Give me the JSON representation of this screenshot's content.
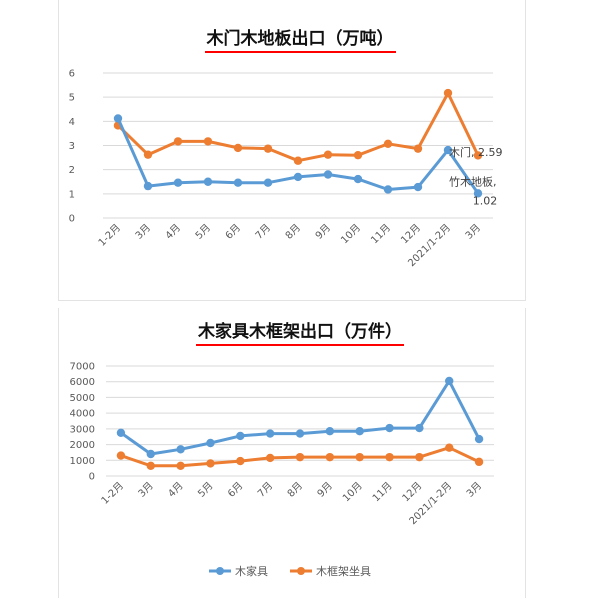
{
  "chart_data": [
    {
      "type": "line",
      "title": "木门木地板出口（万吨）",
      "categories": [
        "1-2月",
        "3月",
        "4月",
        "5月",
        "6月",
        "7月",
        "8月",
        "9月",
        "10月",
        "11月",
        "12月",
        "2021/1-2月",
        "3月"
      ],
      "ylim": [
        0,
        6
      ],
      "yticks": [
        0,
        1,
        2,
        3,
        4,
        5,
        6
      ],
      "grid": true,
      "series": [
        {
          "name": "木门",
          "color": "#ED7D31",
          "values": [
            3.83,
            2.62,
            3.17,
            3.17,
            2.9,
            2.87,
            2.37,
            2.62,
            2.6,
            3.07,
            2.87,
            5.17,
            2.59
          ]
        },
        {
          "name": "竹木地板",
          "color": "#5B9BD5",
          "values": [
            4.12,
            1.32,
            1.46,
            1.5,
            1.46,
            1.46,
            1.7,
            1.8,
            1.61,
            1.18,
            1.28,
            2.81,
            1.02
          ]
        }
      ],
      "annotations": [
        "木门, 2.59",
        "竹木地板,",
        "1.02"
      ]
    },
    {
      "type": "line",
      "title": "木家具木框架出口（万件）",
      "categories": [
        "1-2月",
        "3月",
        "4月",
        "5月",
        "6月",
        "7月",
        "8月",
        "9月",
        "10月",
        "11月",
        "12月",
        "2021/1-2月",
        "3月"
      ],
      "ylim": [
        0,
        7000
      ],
      "yticks": [
        0,
        1000,
        2000,
        3000,
        4000,
        5000,
        6000,
        7000
      ],
      "grid": true,
      "legend_position": "bottom",
      "series": [
        {
          "name": "木家具",
          "color": "#5B9BD5",
          "values": [
            2750,
            1400,
            1700,
            2100,
            2550,
            2700,
            2700,
            2850,
            2850,
            3050,
            3050,
            6050,
            2350
          ]
        },
        {
          "name": "木框架坐具",
          "color": "#ED7D31",
          "values": [
            1300,
            650,
            650,
            800,
            950,
            1150,
            1200,
            1200,
            1200,
            1200,
            1200,
            1800,
            900
          ]
        }
      ]
    }
  ]
}
